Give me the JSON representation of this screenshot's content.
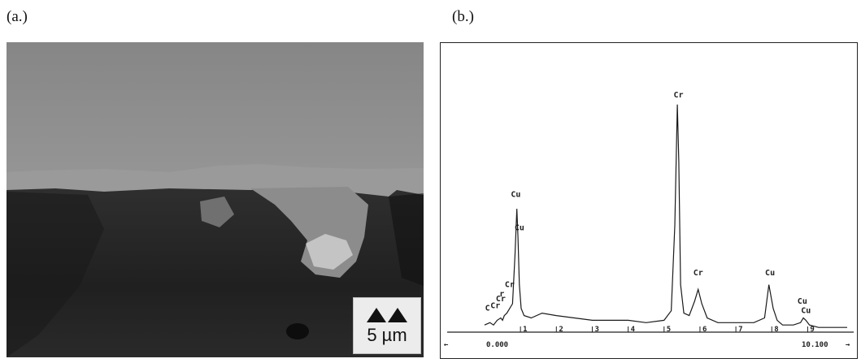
{
  "figure": {
    "panel_a_label": "(a.)",
    "panel_b_label": "(b.)"
  },
  "micrograph": {
    "scale_bar_text": "5 µm"
  },
  "chart_data": {
    "type": "line",
    "title": "",
    "xlabel": "",
    "ylabel": "",
    "xlim": [
      0.0,
      10.1
    ],
    "ylim": [
      0,
      100
    ],
    "grid": false,
    "x_start_label": "0.000",
    "x_end_label": "10.100",
    "left_arrow": "←",
    "right_arrow": "→",
    "tick_labels": [
      "1",
      "2",
      "3",
      "4",
      "5",
      "6",
      "7",
      "8",
      "9"
    ],
    "tick_positions": [
      1,
      2,
      3,
      4,
      5,
      6,
      7,
      8,
      9
    ],
    "series": [
      {
        "x": [
          0.0,
          0.15,
          0.25,
          0.35,
          0.45,
          0.5,
          0.55,
          0.62,
          0.7,
          0.78,
          0.85,
          0.9,
          0.93,
          0.97,
          1.02,
          1.1,
          1.3,
          1.6,
          2.0,
          2.5,
          3.0,
          3.5,
          4.0,
          4.5,
          5.0,
          5.2,
          5.3,
          5.37,
          5.41,
          5.46,
          5.55,
          5.7,
          5.85,
          5.95,
          6.05,
          6.2,
          6.5,
          7.0,
          7.5,
          7.8,
          7.92,
          8.04,
          8.15,
          8.3,
          8.6,
          8.8,
          8.88,
          8.95,
          9.05,
          9.3,
          9.6,
          10.1
        ],
        "y": [
          3,
          4,
          3,
          5,
          6,
          5,
          7,
          8,
          10,
          12,
          33,
          52,
          40,
          20,
          10,
          7,
          6,
          8,
          7,
          6,
          5,
          5,
          5,
          4,
          5,
          9,
          45,
          96,
          72,
          20,
          8,
          7,
          13,
          18,
          12,
          6,
          4,
          4,
          4,
          6,
          20,
          10,
          5,
          3,
          3,
          4,
          6,
          5,
          3,
          2,
          2,
          2
        ]
      }
    ],
    "peak_labels": [
      {
        "x": 0.15,
        "y": 8,
        "text": "C"
      },
      {
        "x": 0.3,
        "y": 9,
        "text": "Cr"
      },
      {
        "x": 0.45,
        "y": 12,
        "text": "Cr"
      },
      {
        "x": 0.55,
        "y": 14,
        "text": "r"
      },
      {
        "x": 0.7,
        "y": 18,
        "text": "Cr"
      },
      {
        "x": 0.87,
        "y": 56,
        "text": "Cu"
      },
      {
        "x": 0.97,
        "y": 42,
        "text": "Cu"
      },
      {
        "x": 5.4,
        "y": 98,
        "text": "Cr"
      },
      {
        "x": 5.95,
        "y": 23,
        "text": "Cr"
      },
      {
        "x": 7.95,
        "y": 23,
        "text": "Cu"
      },
      {
        "x": 8.85,
        "y": 11,
        "text": "Cu"
      },
      {
        "x": 8.95,
        "y": 7,
        "text": "Cu"
      }
    ]
  }
}
